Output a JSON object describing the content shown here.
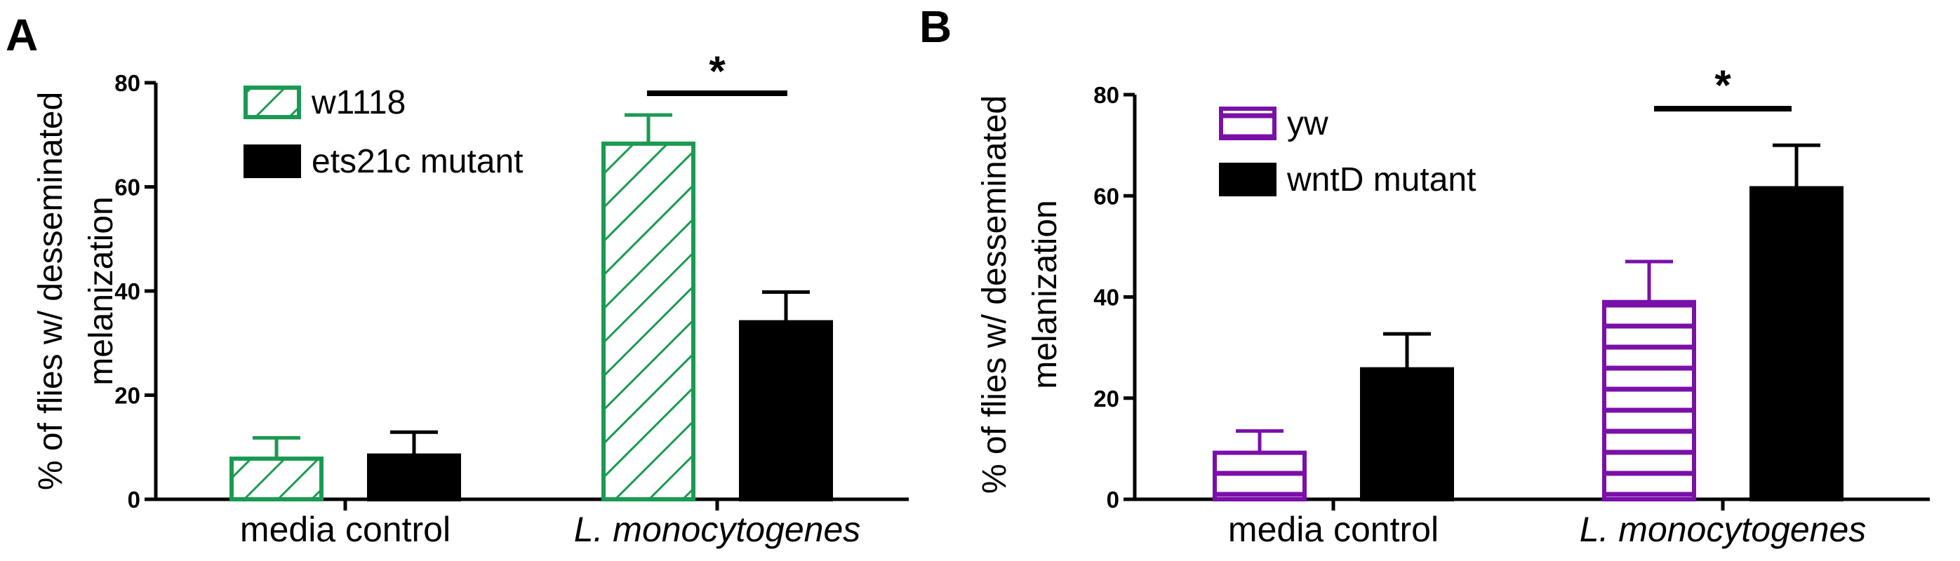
{
  "chart_data": [
    {
      "type": "bar",
      "panel_label": "A",
      "categories": [
        "media control",
        "L. monocytogenes"
      ],
      "category_italic": [
        false,
        true
      ],
      "ylabel_lines": [
        "% of flies w/ desseminated",
        "melanization"
      ],
      "xlabel": "",
      "ylim": [
        0,
        80
      ],
      "yticks": [
        0,
        20,
        40,
        60,
        80
      ],
      "series": [
        {
          "name": "w1118",
          "values": [
            7.8,
            68.3
          ],
          "errors": [
            4.0,
            5.5
          ],
          "color": "#1a9a52",
          "pattern": "diagonal"
        },
        {
          "name": "ets21c mutant",
          "values": [
            8.4,
            34.0
          ],
          "errors": [
            4.5,
            5.8
          ],
          "color": "#000000",
          "pattern": "solid"
        }
      ],
      "significance": [
        {
          "category_index": 1,
          "label": "*"
        }
      ],
      "legend_position": "top-left"
    },
    {
      "type": "bar",
      "panel_label": "B",
      "categories": [
        "media control",
        "L. monocytogenes"
      ],
      "category_italic": [
        false,
        true
      ],
      "ylabel_lines": [
        "% of flies w/ desseminated",
        "melanization"
      ],
      "xlabel": "",
      "ylim": [
        0,
        80
      ],
      "yticks": [
        0,
        20,
        40,
        60,
        80
      ],
      "series": [
        {
          "name": "yw",
          "values": [
            9.2,
            39.0
          ],
          "errors": [
            4.3,
            8.0
          ],
          "color": "#7a10a8",
          "pattern": "horizontal"
        },
        {
          "name": "wntD mutant",
          "values": [
            25.7,
            61.5
          ],
          "errors": [
            7.0,
            8.5
          ],
          "color": "#000000",
          "pattern": "solid"
        }
      ],
      "significance": [
        {
          "category_index": 1,
          "label": "*"
        }
      ],
      "legend_position": "top-left"
    }
  ]
}
